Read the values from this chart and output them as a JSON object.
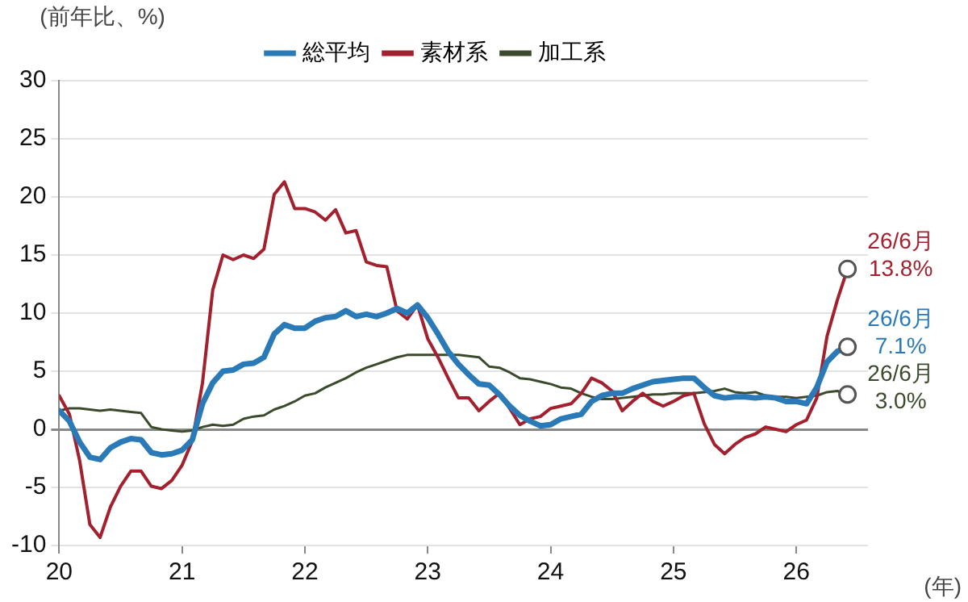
{
  "chart_data": {
    "type": "line",
    "ylabel": "(前年比、%)",
    "xlabel": "(年)",
    "x": [
      "2020-01",
      "2020-02",
      "2020-03",
      "2020-04",
      "2020-05",
      "2020-06",
      "2020-07",
      "2020-08",
      "2020-09",
      "2020-10",
      "2020-11",
      "2020-12",
      "2021-01",
      "2021-02",
      "2021-03",
      "2021-04",
      "2021-05",
      "2021-06",
      "2021-07",
      "2021-08",
      "2021-09",
      "2021-10",
      "2021-11",
      "2021-12",
      "2022-01",
      "2022-02",
      "2022-03",
      "2022-04",
      "2022-05",
      "2022-06",
      "2022-07",
      "2022-08",
      "2022-09",
      "2022-10",
      "2022-11",
      "2022-12",
      "2023-01",
      "2023-02",
      "2023-03",
      "2023-04",
      "2023-05",
      "2023-06",
      "2023-07",
      "2023-08",
      "2023-09",
      "2023-10",
      "2023-11",
      "2023-12",
      "2024-01",
      "2024-02",
      "2024-03",
      "2024-04",
      "2024-05",
      "2024-06",
      "2024-07",
      "2024-08",
      "2024-09",
      "2024-10",
      "2024-11",
      "2024-12",
      "2025-01",
      "2025-02",
      "2025-03",
      "2025-04",
      "2025-05",
      "2025-06",
      "2025-07",
      "2025-08",
      "2025-09",
      "2025-10",
      "2025-11",
      "2025-12",
      "2026-01",
      "2026-02",
      "2026-03",
      "2026-04",
      "2026-05",
      "2026-06"
    ],
    "series": [
      {
        "name": "総平均",
        "color": "#2a7ab8",
        "values": [
          1.6,
          0.7,
          -1.1,
          -2.4,
          -2.6,
          -1.6,
          -1.1,
          -0.8,
          -0.9,
          -2.0,
          -2.2,
          -2.1,
          -1.8,
          -0.9,
          2.2,
          4.0,
          5.0,
          5.1,
          5.6,
          5.7,
          6.2,
          8.2,
          9.0,
          8.7,
          8.7,
          9.3,
          9.6,
          9.7,
          10.2,
          9.7,
          9.9,
          9.7,
          10.0,
          10.4,
          10.0,
          10.7,
          9.6,
          8.2,
          6.7,
          5.6,
          4.7,
          3.9,
          3.8,
          3.0,
          2.0,
          1.2,
          0.7,
          0.3,
          0.4,
          0.9,
          1.1,
          1.3,
          2.4,
          2.9,
          3.1,
          3.1,
          3.5,
          3.8,
          4.1,
          4.2,
          4.3,
          4.4,
          4.4,
          3.6,
          2.9,
          2.7,
          2.8,
          2.8,
          2.7,
          2.8,
          2.7,
          2.4,
          2.4,
          2.2,
          3.6,
          5.8,
          6.7,
          7.1
        ]
      },
      {
        "name": "素材系",
        "color": "#a3202e",
        "values": [
          2.9,
          1.3,
          -2.7,
          -8.2,
          -9.3,
          -6.7,
          -4.9,
          -3.6,
          -3.6,
          -4.9,
          -5.1,
          -4.4,
          -3.1,
          -1.0,
          4.0,
          12.0,
          15.0,
          14.6,
          15.0,
          14.7,
          15.5,
          20.2,
          21.3,
          19.0,
          19.0,
          18.7,
          18.0,
          18.9,
          16.9,
          17.1,
          14.4,
          14.1,
          14.0,
          10.2,
          9.5,
          10.7,
          7.8,
          6.2,
          4.4,
          2.7,
          2.7,
          1.6,
          2.4,
          3.1,
          1.8,
          0.4,
          0.9,
          1.1,
          1.8,
          2.0,
          2.2,
          3.1,
          4.4,
          4.0,
          3.3,
          1.6,
          2.4,
          3.1,
          2.4,
          2.0,
          2.4,
          2.9,
          3.1,
          0.5,
          -1.3,
          -2.1,
          -1.3,
          -0.7,
          -0.4,
          0.2,
          0.0,
          -0.2,
          0.4,
          0.8,
          2.7,
          8.0,
          11.1,
          13.8
        ]
      },
      {
        "name": "加工系",
        "color": "#3c4a2c",
        "values": [
          1.6,
          1.8,
          1.8,
          1.7,
          1.6,
          1.7,
          1.6,
          1.5,
          1.4,
          0.2,
          0.0,
          -0.1,
          -0.2,
          -0.1,
          0.2,
          0.4,
          0.3,
          0.4,
          0.9,
          1.1,
          1.2,
          1.7,
          2.0,
          2.4,
          2.9,
          3.1,
          3.6,
          4.0,
          4.4,
          4.9,
          5.3,
          5.6,
          5.9,
          6.2,
          6.4,
          6.4,
          6.4,
          6.4,
          6.4,
          6.4,
          6.3,
          6.2,
          5.4,
          5.3,
          4.9,
          4.4,
          4.3,
          4.1,
          3.9,
          3.6,
          3.5,
          3.1,
          2.8,
          2.6,
          2.6,
          2.7,
          2.8,
          2.9,
          3.0,
          3.0,
          3.1,
          3.1,
          3.1,
          3.2,
          3.3,
          3.5,
          3.2,
          3.1,
          3.2,
          2.9,
          2.8,
          2.8,
          2.7,
          2.8,
          2.9,
          3.2,
          3.3,
          3.0
        ]
      }
    ],
    "annotations": [
      {
        "text": "26/6月\n7.1%",
        "x": "2026-06",
        "y": 7.1
      },
      {
        "text": "26/6月\n13.8%",
        "x": "2026-06",
        "y": 13.8
      },
      {
        "text": "26/6月\n3.0%",
        "x": "2026-06",
        "y": 3.0
      }
    ],
    "xlim": [
      "2020-01",
      "2026-08"
    ],
    "xticks": [
      {
        "value": "2020-01",
        "label": "20"
      },
      {
        "value": "2021-01",
        "label": "21"
      },
      {
        "value": "2022-01",
        "label": "22"
      },
      {
        "value": "2023-01",
        "label": "23"
      },
      {
        "value": "2024-01",
        "label": "24"
      },
      {
        "value": "2025-01",
        "label": "25"
      },
      {
        "value": "2026-01",
        "label": "26"
      }
    ],
    "ylim": [
      -10,
      30
    ],
    "yticks": [
      -10,
      -5,
      0,
      5,
      10,
      15,
      20,
      25,
      30
    ],
    "grid": "y",
    "legend": "top",
    "marker": "none",
    "line_style": "solid"
  }
}
